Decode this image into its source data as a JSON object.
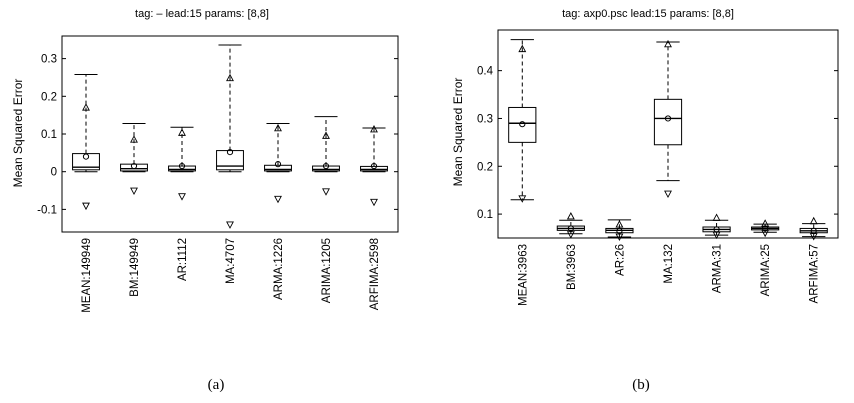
{
  "chart_data": [
    {
      "type": "boxplot",
      "title": "tag: – lead:15 params: [8,8]",
      "ylabel": "Mean Squared Error",
      "caption": "(a)",
      "ylim": [
        -0.16,
        0.36
      ],
      "yticks": [
        -0.1,
        0,
        0.1,
        0.2,
        0.3
      ],
      "ytick_labels": [
        "-0.1",
        "0",
        "0.1",
        "0.2",
        "0.3"
      ],
      "categories": [
        "MEAN:149949",
        "BM:149949",
        "AR:1112",
        "MA:4707",
        "ARMA:1226",
        "ARIMA:1205",
        "ARFIMA:2598"
      ],
      "boxes": [
        {
          "q1": 0.005,
          "median": 0.012,
          "q3": 0.048,
          "whisker_low": 0.0,
          "whisker_high": 0.258,
          "mean": 0.04,
          "p95": 0.17,
          "p5": -0.09
        },
        {
          "q1": 0.002,
          "median": 0.008,
          "q3": 0.02,
          "whisker_low": 0.0,
          "whisker_high": 0.128,
          "mean": 0.015,
          "p95": 0.085,
          "p5": -0.05
        },
        {
          "q1": 0.002,
          "median": 0.006,
          "q3": 0.015,
          "whisker_low": 0.0,
          "whisker_high": 0.118,
          "mean": 0.015,
          "p95": 0.103,
          "p5": -0.065
        },
        {
          "q1": 0.005,
          "median": 0.015,
          "q3": 0.056,
          "whisker_low": 0.0,
          "whisker_high": 0.336,
          "mean": 0.052,
          "p95": 0.248,
          "p5": -0.14
        },
        {
          "q1": 0.002,
          "median": 0.006,
          "q3": 0.017,
          "whisker_low": 0.0,
          "whisker_high": 0.128,
          "mean": 0.02,
          "p95": 0.115,
          "p5": -0.072
        },
        {
          "q1": 0.002,
          "median": 0.006,
          "q3": 0.015,
          "whisker_low": 0.0,
          "whisker_high": 0.146,
          "mean": 0.015,
          "p95": 0.095,
          "p5": -0.052
        },
        {
          "q1": 0.002,
          "median": 0.006,
          "q3": 0.014,
          "whisker_low": 0.0,
          "whisker_high": 0.116,
          "mean": 0.015,
          "p95": 0.112,
          "p5": -0.08
        }
      ]
    },
    {
      "type": "boxplot",
      "title": "tag: axp0.psc lead:15 params: [8,8]",
      "ylabel": "Mean Squared Error",
      "caption": "(b)",
      "ylim": [
        0.05,
        0.485
      ],
      "yticks": [
        0.1,
        0.2,
        0.3,
        0.4
      ],
      "ytick_labels": [
        "0.1",
        "0.2",
        "0.3",
        "0.4"
      ],
      "categories": [
        "MEAN:3963",
        "BM:3963",
        "AR:26",
        "MA:132",
        "ARMA:31",
        "ARIMA:25",
        "ARFIMA:57"
      ],
      "boxes": [
        {
          "q1": 0.25,
          "median": 0.29,
          "q3": 0.323,
          "whisker_low": 0.13,
          "whisker_high": 0.465,
          "mean": 0.288,
          "p95": 0.445,
          "p5": 0.133
        },
        {
          "q1": 0.066,
          "median": 0.07,
          "q3": 0.075,
          "whisker_low": 0.059,
          "whisker_high": 0.087,
          "mean": 0.07,
          "p95": 0.095,
          "p5": 0.058
        },
        {
          "q1": 0.061,
          "median": 0.066,
          "q3": 0.07,
          "whisker_low": 0.052,
          "whisker_high": 0.088,
          "mean": 0.065,
          "p95": 0.078,
          "p5": 0.053
        },
        {
          "q1": 0.245,
          "median": 0.3,
          "q3": 0.34,
          "whisker_low": 0.17,
          "whisker_high": 0.46,
          "mean": 0.3,
          "p95": 0.455,
          "p5": 0.143
        },
        {
          "q1": 0.063,
          "median": 0.068,
          "q3": 0.073,
          "whisker_low": 0.056,
          "whisker_high": 0.087,
          "mean": 0.068,
          "p95": 0.092,
          "p5": 0.057
        },
        {
          "q1": 0.067,
          "median": 0.07,
          "q3": 0.073,
          "whisker_low": 0.062,
          "whisker_high": 0.079,
          "mean": 0.07,
          "p95": 0.08,
          "p5": 0.061
        },
        {
          "q1": 0.061,
          "median": 0.065,
          "q3": 0.07,
          "whisker_low": 0.053,
          "whisker_high": 0.08,
          "mean": 0.065,
          "p95": 0.085,
          "p5": 0.054
        }
      ]
    }
  ]
}
